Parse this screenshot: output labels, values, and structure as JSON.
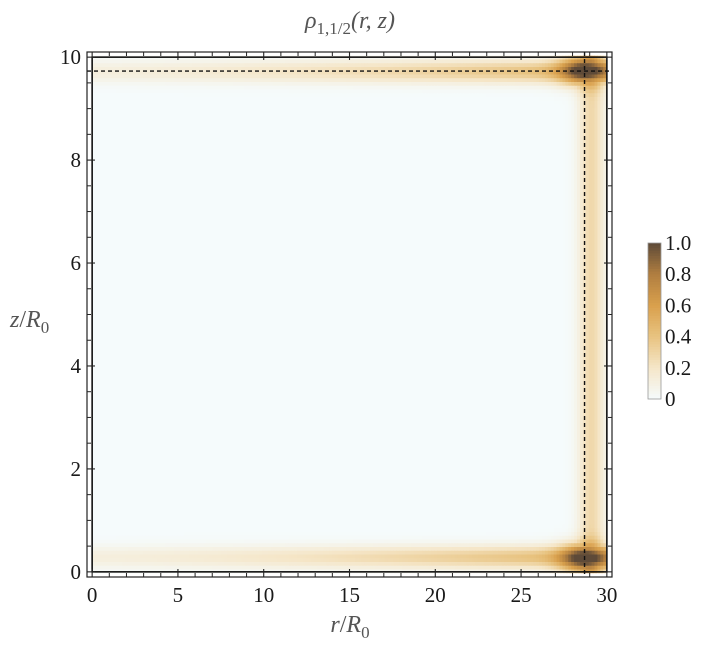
{
  "chart_data": {
    "type": "heatmap",
    "title_parts": {
      "symbol": "ρ",
      "subscript": "1,1/2",
      "args": "(r, z)"
    },
    "xlabel_parts": {
      "var": "r",
      "sep": "/",
      "unit": "R",
      "unit_sub": "0"
    },
    "ylabel_parts": {
      "var": "z",
      "sep": "/",
      "unit": "R",
      "unit_sub": "0"
    },
    "xlim": [
      -0.3,
      30.3
    ],
    "ylim": [
      -0.1,
      10.1
    ],
    "x_ticks": [
      0,
      5,
      10,
      15,
      20,
      25,
      30
    ],
    "x_tick_labels": [
      "0",
      "5",
      "10",
      "15",
      "20",
      "25",
      "30"
    ],
    "y_ticks": [
      0,
      2,
      4,
      6,
      8,
      10
    ],
    "y_tick_labels": [
      "0",
      "2",
      "4",
      "6",
      "8",
      "10"
    ],
    "colorbar": {
      "min": 0,
      "max": 1.0,
      "ticks": [
        0,
        0.2,
        0.4,
        0.6,
        0.8,
        1.0
      ],
      "tick_labels": [
        "0",
        "0.2",
        "0.4",
        "0.6",
        "0.8",
        "1.0"
      ],
      "colors": [
        "#f5fbfc",
        "#f5e6c8",
        "#e8c380",
        "#d9a04c",
        "#b07e40",
        "#5e4a38"
      ],
      "placement": "right"
    },
    "boundary_box": {
      "r": [
        0,
        30
      ],
      "z": [
        0,
        10
      ]
    },
    "dashed_lines": {
      "z": 9.73,
      "r": 28.7
    },
    "density_model": {
      "description": "density concentrated along edges z=0, z=10, r=30 with peaks at corners",
      "r_max": 30,
      "z_max": 10,
      "peak_points": [
        {
          "r": 28.7,
          "z": 9.75
        },
        {
          "r": 28.7,
          "z": 0.25
        }
      ]
    },
    "grid": false
  }
}
